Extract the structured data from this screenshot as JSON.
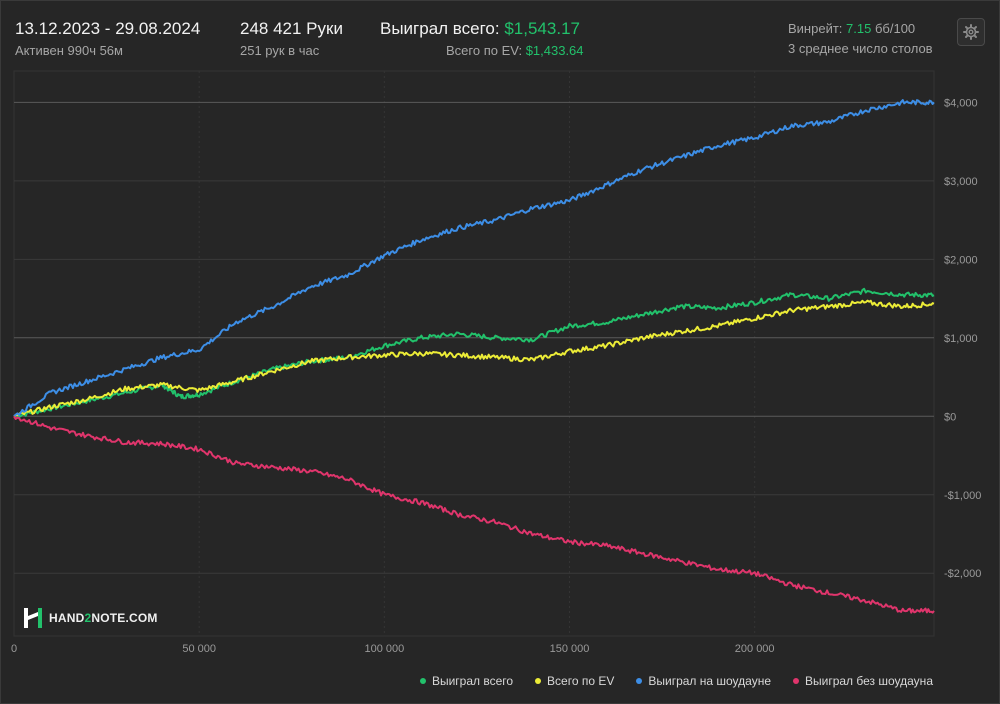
{
  "header": {
    "date_range": "13.12.2023 - 29.08.2024",
    "active": "Активен 990ч 56м",
    "hands": "248 421 Руки",
    "hands_per_hour": "251 рук в час",
    "won_total_label": "Выиграл всего:",
    "won_total_value": "$1,543.17",
    "ev_label": "Всего по EV:",
    "ev_value": "$1,433.64",
    "winrate_label": "Винрейт:",
    "winrate_value": "7.15",
    "winrate_unit": "бб/100",
    "tables": "3 среднее число столов"
  },
  "logo": {
    "prefix": "HAND",
    "num": "2",
    "suffix": "NOTE.COM"
  },
  "colors": {
    "green": "#22c16b",
    "yellow": "#ecec37",
    "blue": "#3d8ee6",
    "pink": "#e0356c"
  },
  "chart_data": {
    "type": "line",
    "x_ticks": [
      0,
      50000,
      100000,
      150000,
      200000
    ],
    "x_tick_labels": [
      "0",
      "50 000",
      "100 000",
      "150 000",
      "200 000"
    ],
    "y_ticks": [
      4000,
      3000,
      2000,
      1000,
      0,
      -1000,
      -2000
    ],
    "y_tick_labels": [
      "$4,000",
      "$3,000",
      "$2,000",
      "$1,000",
      "$0",
      "-$1,000",
      "-$2,000"
    ],
    "xlim": [
      0,
      248421
    ],
    "ylim": [
      -2800,
      4400
    ],
    "legend_position": "bottom-right",
    "series": [
      {
        "name": "Выиграл всего",
        "color": "#22c16b",
        "points": [
          [
            0,
            0
          ],
          [
            10000,
            100
          ],
          [
            20000,
            200
          ],
          [
            30000,
            300
          ],
          [
            40000,
            400
          ],
          [
            45000,
            250
          ],
          [
            50000,
            280
          ],
          [
            60000,
            450
          ],
          [
            70000,
            600
          ],
          [
            80000,
            700
          ],
          [
            90000,
            750
          ],
          [
            100000,
            900
          ],
          [
            110000,
            1000
          ],
          [
            120000,
            1050
          ],
          [
            130000,
            1000
          ],
          [
            140000,
            980
          ],
          [
            150000,
            1150
          ],
          [
            160000,
            1200
          ],
          [
            170000,
            1300
          ],
          [
            180000,
            1400
          ],
          [
            190000,
            1380
          ],
          [
            200000,
            1450
          ],
          [
            210000,
            1550
          ],
          [
            220000,
            1500
          ],
          [
            230000,
            1600
          ],
          [
            240000,
            1550
          ],
          [
            248421,
            1543
          ]
        ]
      },
      {
        "name": "Всего по EV",
        "color": "#ecec37",
        "points": [
          [
            0,
            0
          ],
          [
            10000,
            120
          ],
          [
            20000,
            220
          ],
          [
            30000,
            350
          ],
          [
            40000,
            400
          ],
          [
            50000,
            330
          ],
          [
            60000,
            450
          ],
          [
            70000,
            580
          ],
          [
            80000,
            700
          ],
          [
            90000,
            750
          ],
          [
            100000,
            780
          ],
          [
            110000,
            800
          ],
          [
            120000,
            780
          ],
          [
            130000,
            750
          ],
          [
            140000,
            720
          ],
          [
            150000,
            830
          ],
          [
            160000,
            900
          ],
          [
            170000,
            1000
          ],
          [
            180000,
            1080
          ],
          [
            190000,
            1150
          ],
          [
            200000,
            1250
          ],
          [
            210000,
            1350
          ],
          [
            220000,
            1400
          ],
          [
            230000,
            1450
          ],
          [
            240000,
            1400
          ],
          [
            248421,
            1434
          ]
        ]
      },
      {
        "name": "Выиграл на шоудауне",
        "color": "#3d8ee6",
        "points": [
          [
            0,
            0
          ],
          [
            10000,
            300
          ],
          [
            20000,
            450
          ],
          [
            30000,
            600
          ],
          [
            40000,
            750
          ],
          [
            50000,
            850
          ],
          [
            60000,
            1200
          ],
          [
            70000,
            1400
          ],
          [
            80000,
            1650
          ],
          [
            90000,
            1800
          ],
          [
            100000,
            2050
          ],
          [
            110000,
            2250
          ],
          [
            120000,
            2400
          ],
          [
            130000,
            2500
          ],
          [
            140000,
            2650
          ],
          [
            150000,
            2750
          ],
          [
            160000,
            2950
          ],
          [
            170000,
            3150
          ],
          [
            180000,
            3300
          ],
          [
            190000,
            3450
          ],
          [
            200000,
            3550
          ],
          [
            210000,
            3700
          ],
          [
            220000,
            3750
          ],
          [
            230000,
            3900
          ],
          [
            240000,
            4000
          ],
          [
            248421,
            4000
          ]
        ]
      },
      {
        "name": "Выиграл без шоудауна",
        "color": "#e0356c",
        "points": [
          [
            0,
            0
          ],
          [
            10000,
            -150
          ],
          [
            20000,
            -250
          ],
          [
            30000,
            -330
          ],
          [
            40000,
            -350
          ],
          [
            50000,
            -420
          ],
          [
            60000,
            -600
          ],
          [
            70000,
            -650
          ],
          [
            80000,
            -700
          ],
          [
            90000,
            -800
          ],
          [
            100000,
            -1000
          ],
          [
            110000,
            -1100
          ],
          [
            120000,
            -1250
          ],
          [
            130000,
            -1350
          ],
          [
            140000,
            -1500
          ],
          [
            150000,
            -1600
          ],
          [
            160000,
            -1650
          ],
          [
            170000,
            -1750
          ],
          [
            180000,
            -1850
          ],
          [
            190000,
            -1950
          ],
          [
            200000,
            -2000
          ],
          [
            210000,
            -2150
          ],
          [
            220000,
            -2250
          ],
          [
            230000,
            -2350
          ],
          [
            240000,
            -2480
          ],
          [
            248421,
            -2480
          ]
        ]
      }
    ]
  }
}
